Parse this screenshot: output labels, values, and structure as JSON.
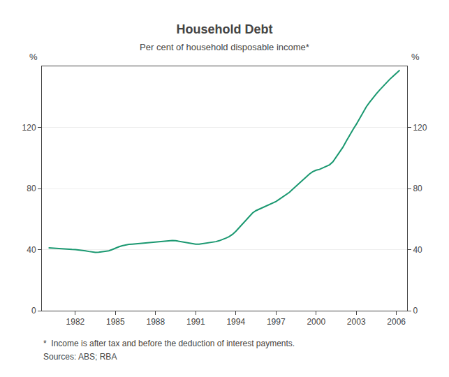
{
  "chart_data": {
    "type": "line",
    "title": "Household Debt",
    "subtitle": "Per cent of household disposable income*",
    "ylabel": "%",
    "y2label": "%",
    "annotations": [
      "*  Income is after tax and before the deduction of interest payments.",
      "Sources: ABS; RBA"
    ],
    "color": "#1a9870",
    "xlim": [
      1979.5,
      2006.8
    ],
    "ylim": [
      0,
      160
    ],
    "y2lim": [
      0,
      160
    ],
    "xticks": [
      1982,
      1985,
      1988,
      1991,
      1994,
      1997,
      2000,
      2003,
      2006
    ],
    "yticks": [
      0,
      40,
      80,
      120
    ],
    "y2ticks": [
      0,
      40,
      80,
      120
    ],
    "grid": true,
    "x": [
      1980.0,
      1980.25,
      1980.5,
      1980.75,
      1981.0,
      1981.25,
      1981.5,
      1981.75,
      1982.0,
      1982.25,
      1982.5,
      1982.75,
      1983.0,
      1983.25,
      1983.5,
      1983.75,
      1984.0,
      1984.25,
      1984.5,
      1984.75,
      1985.0,
      1985.25,
      1985.5,
      1985.75,
      1986.0,
      1986.25,
      1986.5,
      1986.75,
      1987.0,
      1987.25,
      1987.5,
      1987.75,
      1988.0,
      1988.25,
      1988.5,
      1988.75,
      1989.0,
      1989.25,
      1989.5,
      1989.75,
      1990.0,
      1990.25,
      1990.5,
      1990.75,
      1991.0,
      1991.25,
      1991.5,
      1991.75,
      1992.0,
      1992.25,
      1992.5,
      1992.75,
      1993.0,
      1993.25,
      1993.5,
      1993.75,
      1994.0,
      1994.25,
      1994.5,
      1994.75,
      1995.0,
      1995.25,
      1995.5,
      1995.75,
      1996.0,
      1996.25,
      1996.5,
      1996.75,
      1997.0,
      1997.25,
      1997.5,
      1997.75,
      1998.0,
      1998.25,
      1998.5,
      1998.75,
      1999.0,
      1999.25,
      1999.5,
      1999.75,
      2000.0,
      2000.25,
      2000.5,
      2000.75,
      2001.0,
      2001.25,
      2001.5,
      2001.75,
      2002.0,
      2002.25,
      2002.5,
      2002.75,
      2003.0,
      2003.25,
      2003.5,
      2003.75,
      2004.0,
      2004.25,
      2004.5,
      2004.75,
      2005.0,
      2005.25,
      2005.5,
      2005.75,
      2006.0,
      2006.25
    ],
    "values": [
      41.2,
      41.0,
      40.8,
      40.6,
      40.4,
      40.3,
      40.2,
      40.1,
      40.0,
      39.8,
      39.6,
      39.2,
      38.8,
      38.4,
      38.2,
      38.3,
      38.5,
      38.8,
      39.2,
      40.0,
      41.0,
      41.8,
      42.5,
      43.0,
      43.4,
      43.6,
      43.8,
      44.0,
      44.2,
      44.4,
      44.6,
      44.8,
      45.0,
      45.2,
      45.4,
      45.6,
      46.0,
      46.0,
      45.8,
      45.4,
      45.0,
      44.5,
      44.2,
      43.8,
      43.5,
      43.5,
      43.8,
      44.2,
      44.5,
      44.8,
      45.2,
      45.8,
      46.5,
      47.5,
      48.5,
      50.0,
      52.0,
      54.5,
      57.0,
      59.5,
      62.0,
      64.0,
      65.5,
      66.5,
      67.5,
      68.5,
      69.5,
      70.5,
      71.5,
      73.0,
      74.5,
      76.0,
      77.5,
      79.5,
      81.5,
      83.5,
      85.5,
      87.5,
      89.5,
      91.0,
      92.0,
      92.5,
      93.5,
      94.5,
      95.5,
      97.5,
      100.5,
      103.5,
      107.0,
      111.0,
      115.0,
      118.5,
      122.0,
      126.0,
      130.0,
      133.5,
      136.5,
      139.5,
      142.0,
      144.5,
      147.0,
      149.5,
      151.5,
      153.5,
      155.5,
      157.5
    ]
  }
}
